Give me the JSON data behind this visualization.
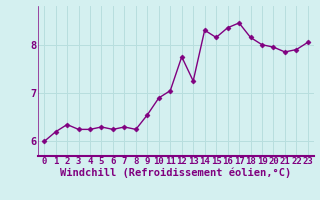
{
  "x": [
    0,
    1,
    2,
    3,
    4,
    5,
    6,
    7,
    8,
    9,
    10,
    11,
    12,
    13,
    14,
    15,
    16,
    17,
    18,
    19,
    20,
    21,
    22,
    23
  ],
  "y": [
    6.0,
    6.2,
    6.35,
    6.25,
    6.25,
    6.3,
    6.25,
    6.3,
    6.25,
    6.55,
    6.9,
    7.05,
    7.75,
    7.25,
    8.3,
    8.15,
    8.35,
    8.45,
    8.15,
    8.0,
    7.95,
    7.85,
    7.9,
    8.05
  ],
  "line_color": "#800080",
  "marker_color": "#800080",
  "bg_color": "#d4f0f0",
  "grid_color": "#b8dede",
  "xlabel": "Windchill (Refroidissement éolien,°C)",
  "tick_color": "#800080",
  "title": "",
  "ylim": [
    5.7,
    8.8
  ],
  "xlim": [
    -0.5,
    23.5
  ],
  "yticks": [
    6,
    7,
    8
  ],
  "xticks": [
    0,
    1,
    2,
    3,
    4,
    5,
    6,
    7,
    8,
    9,
    10,
    11,
    12,
    13,
    14,
    15,
    16,
    17,
    18,
    19,
    20,
    21,
    22,
    23
  ],
  "tick_fontsize": 6.5,
  "xlabel_fontsize": 7.5,
  "spine_color": "#800080"
}
